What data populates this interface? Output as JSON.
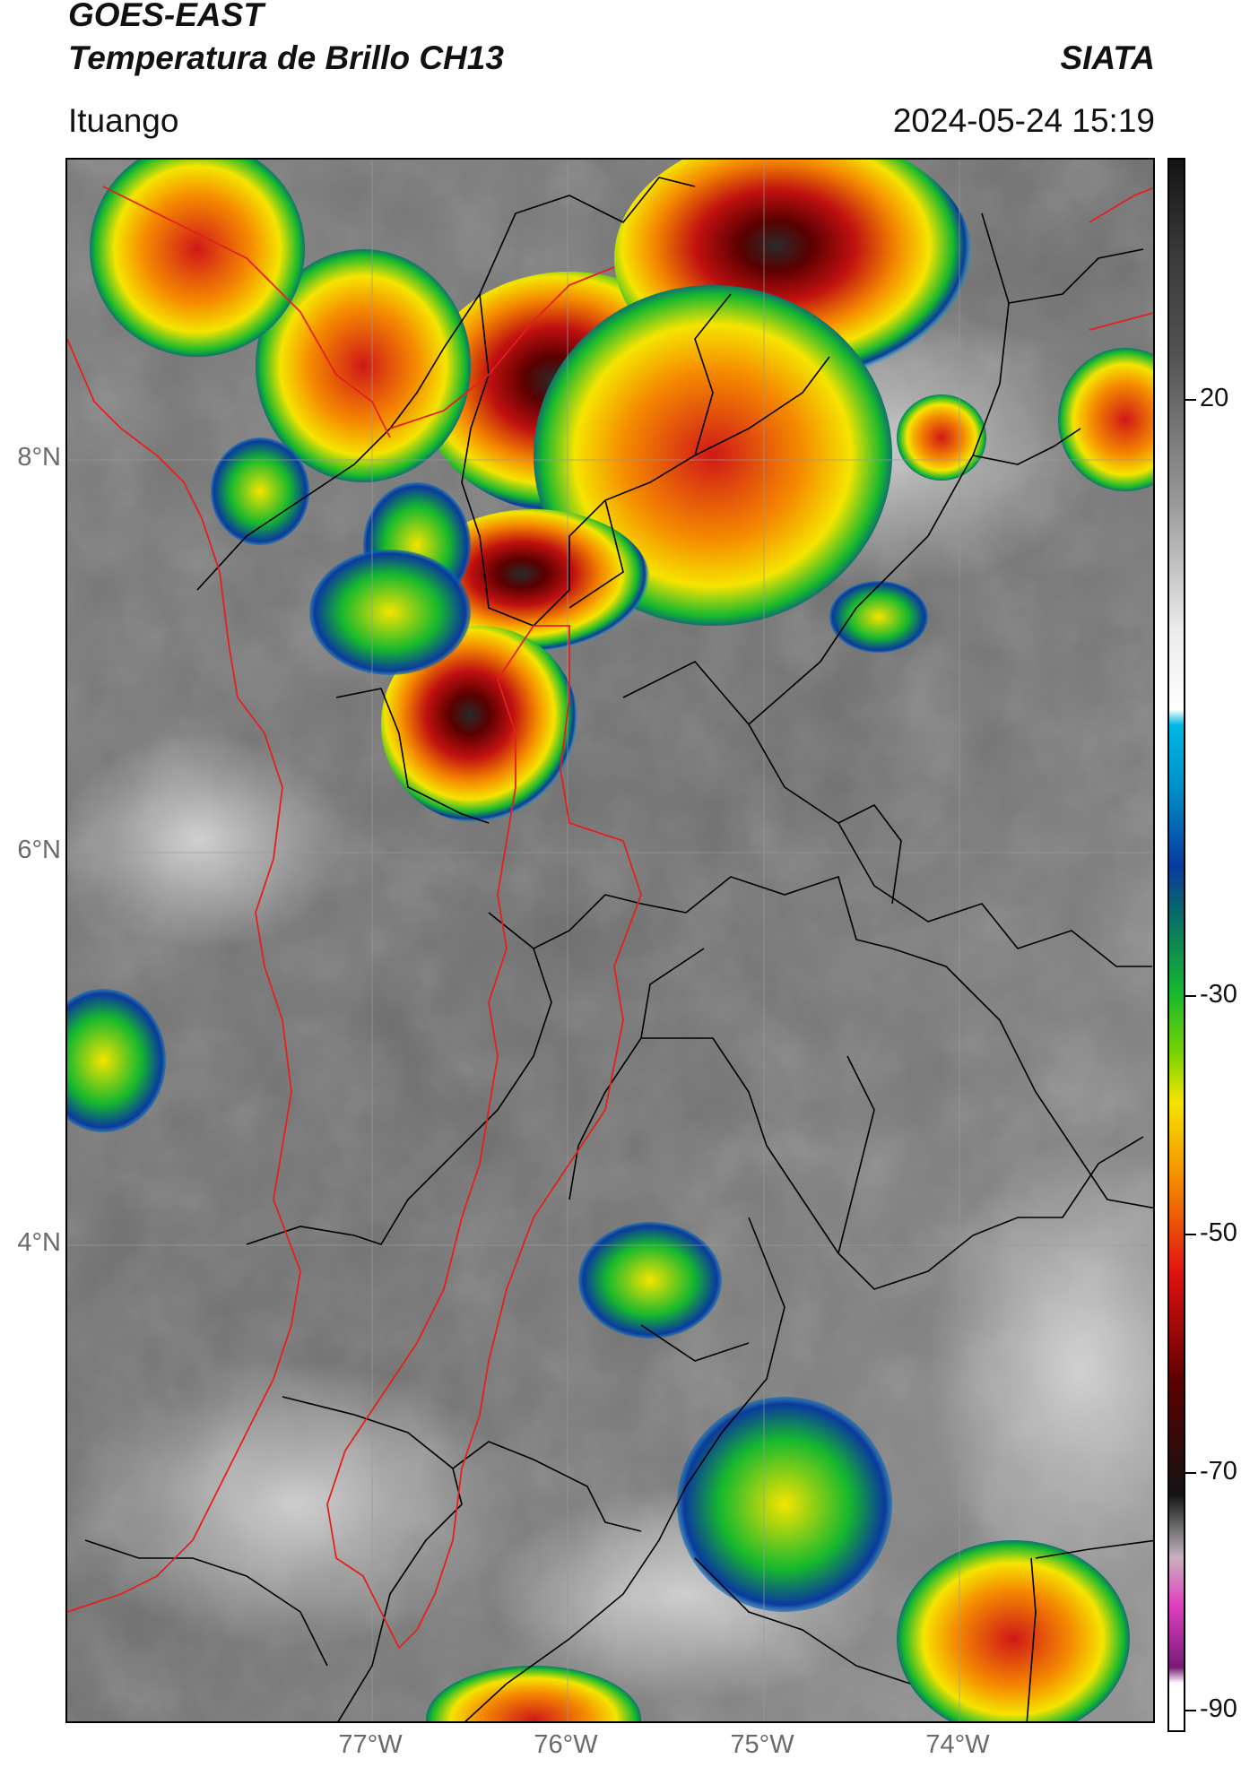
{
  "header": {
    "title_line1": "GOES-EAST",
    "title_line2": "Temperatura de Brillo CH13",
    "organization": "SIATA",
    "location": "Ituango",
    "timestamp": "2024-05-24 15:19"
  },
  "map": {
    "latitude_labels": [
      "8°N",
      "6°N",
      "4°N"
    ],
    "longitude_labels": [
      "77°W",
      "76°W",
      "75°W",
      "74°W"
    ],
    "border_colors": {
      "department": "#000000",
      "region_highlight": "#e3201c"
    }
  },
  "colorbar": {
    "tick_labels": [
      "20",
      "-30",
      "-50",
      "-70",
      "-90"
    ],
    "palette": {
      "warm_gray_dark": "#505050",
      "warm_gray_light": "#ececec",
      "cyan": "#00b8e6",
      "blue": "#0a3a9e",
      "green": "#16b82e",
      "yellow": "#f5e400",
      "orange": "#f58a00",
      "red": "#e01010",
      "dark_red": "#5a0000",
      "black": "#141414",
      "magenta": "#e040c0",
      "purple": "#7a1a7a"
    }
  }
}
